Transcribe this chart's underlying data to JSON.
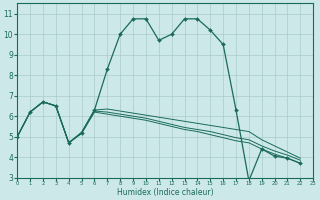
{
  "xlabel": "Humidex (Indice chaleur)",
  "bg_color": "#cce8e8",
  "grid_color": "#aacccc",
  "line_color": "#1a6b5a",
  "xlim": [
    0,
    23
  ],
  "ylim": [
    3,
    11.5
  ],
  "xticks": [
    0,
    1,
    2,
    3,
    4,
    5,
    6,
    7,
    8,
    9,
    10,
    11,
    12,
    13,
    14,
    15,
    16,
    17,
    18,
    19,
    20,
    21,
    22,
    23
  ],
  "yticks": [
    3,
    4,
    5,
    6,
    7,
    8,
    9,
    10,
    11
  ],
  "series0_x": [
    0,
    1,
    2,
    3,
    4,
    5,
    6,
    7,
    8,
    9,
    10,
    11,
    12,
    13,
    14,
    15,
    16,
    17,
    18,
    19,
    20,
    21,
    22
  ],
  "series0_y": [
    5.0,
    6.2,
    6.7,
    6.5,
    4.7,
    5.2,
    6.3,
    8.3,
    10.0,
    10.75,
    10.75,
    9.7,
    10.0,
    10.75,
    10.75,
    10.2,
    9.5,
    6.3,
    2.85,
    4.4,
    4.05,
    3.95,
    3.7
  ],
  "series1_x": [
    0,
    1,
    2,
    3,
    4,
    5,
    6,
    7,
    8,
    9,
    10,
    11,
    12,
    13,
    14,
    15,
    16,
    17,
    18,
    19,
    20,
    21,
    22
  ],
  "series1_y": [
    5.0,
    6.2,
    6.7,
    6.5,
    4.7,
    5.2,
    6.3,
    6.35,
    6.25,
    6.15,
    6.05,
    5.95,
    5.85,
    5.75,
    5.65,
    5.55,
    5.45,
    5.35,
    5.25,
    4.85,
    4.55,
    4.25,
    3.95
  ],
  "series2_x": [
    0,
    1,
    2,
    3,
    4,
    5,
    6,
    7,
    8,
    9,
    10,
    11,
    12,
    13,
    14,
    15,
    16,
    17,
    18,
    19,
    20,
    21,
    22
  ],
  "series2_y": [
    5.0,
    6.2,
    6.7,
    6.5,
    4.7,
    5.2,
    6.25,
    6.2,
    6.1,
    6.0,
    5.9,
    5.75,
    5.6,
    5.45,
    5.35,
    5.25,
    5.1,
    4.95,
    4.85,
    4.55,
    4.3,
    4.1,
    3.85
  ],
  "series3_x": [
    0,
    1,
    2,
    3,
    4,
    5,
    6,
    7,
    8,
    9,
    10,
    11,
    12,
    13,
    14,
    15,
    16,
    17,
    18,
    19,
    20,
    21,
    22
  ],
  "series3_y": [
    5.0,
    6.2,
    6.7,
    6.5,
    4.7,
    5.15,
    6.2,
    6.1,
    6.0,
    5.9,
    5.8,
    5.65,
    5.5,
    5.35,
    5.25,
    5.1,
    4.95,
    4.8,
    4.7,
    4.4,
    4.15,
    3.95,
    3.7
  ]
}
